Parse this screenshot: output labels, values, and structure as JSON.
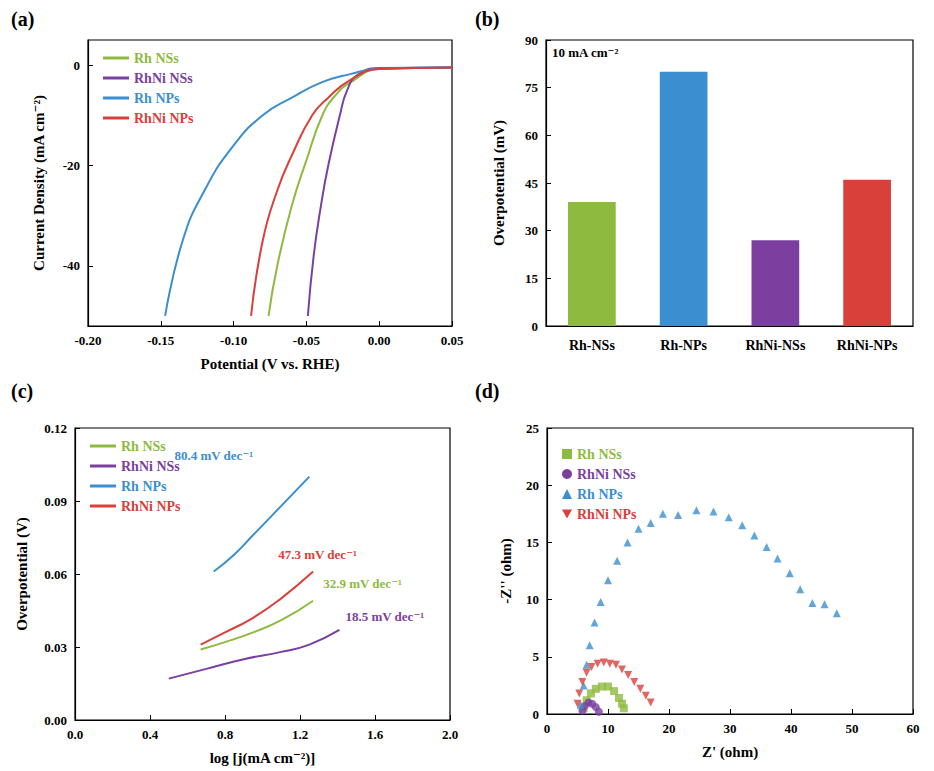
{
  "chart_data": [
    {
      "type": "line",
      "title": "(a)",
      "x_label": "Potential (V vs. RHE)",
      "y_label": "Current Density (mA cm⁻²)",
      "xlim": [
        -0.2,
        0.05
      ],
      "xticks": [
        {
          "value": -0.2,
          "label": "-0.20"
        },
        -0.15,
        {
          "value": -0.1,
          "label": "-0.10"
        },
        -0.05,
        {
          "value": 0,
          "label": "0.00"
        },
        0.05
      ],
      "ylim": [
        -52,
        5
      ],
      "yticks": [
        -40,
        -20,
        0
      ],
      "grid": false,
      "legend": "upper left",
      "series": [
        {
          "name": "Rh NSs",
          "color": "#8dba3f",
          "values": [
            [
              0.05,
              -0.5
            ],
            [
              0.0,
              -0.8
            ],
            [
              -0.02,
              -3.5
            ],
            [
              -0.03,
              -6
            ],
            [
              -0.039,
              -10
            ],
            [
              -0.05,
              -19
            ],
            [
              -0.06,
              -28
            ],
            [
              -0.07,
              -40
            ],
            [
              -0.076,
              -50
            ]
          ]
        },
        {
          "name": "RhNi NSs",
          "color": "#7b3fa0",
          "values": [
            [
              0.05,
              -0.5
            ],
            [
              0.0,
              -0.6
            ],
            [
              -0.015,
              -2
            ],
            [
              -0.022,
              -5
            ],
            [
              -0.027,
              -10
            ],
            [
              -0.035,
              -20
            ],
            [
              -0.04,
              -28
            ],
            [
              -0.045,
              -38
            ],
            [
              -0.049,
              -50
            ]
          ]
        },
        {
          "name": "Rh NPs",
          "color": "#3b8fd0",
          "values": [
            [
              0.05,
              -0.5
            ],
            [
              0.0,
              -0.7
            ],
            [
              -0.02,
              -1.8
            ],
            [
              -0.04,
              -3.5
            ],
            [
              -0.06,
              -6.5
            ],
            [
              -0.08,
              -10
            ],
            [
              -0.1,
              -16
            ],
            [
              -0.12,
              -25
            ],
            [
              -0.135,
              -35
            ],
            [
              -0.147,
              -50
            ]
          ]
        },
        {
          "name": "RhNi NPs",
          "color": "#d9403a",
          "values": [
            [
              0.05,
              -0.5
            ],
            [
              0.0,
              -0.8
            ],
            [
              -0.02,
              -3
            ],
            [
              -0.035,
              -6.5
            ],
            [
              -0.046,
              -10
            ],
            [
              -0.06,
              -18
            ],
            [
              -0.07,
              -25
            ],
            [
              -0.08,
              -35
            ],
            [
              -0.088,
              -50
            ]
          ]
        }
      ]
    },
    {
      "type": "bar",
      "title": "(b)",
      "annotation": "10 mA cm⁻²",
      "y_label": "Overpotential (mV)",
      "categories": [
        "Rh-NSs",
        "Rh-NPs",
        "RhNi-NSs",
        "RhNi-NPs"
      ],
      "values": [
        39,
        80,
        27,
        46
      ],
      "colors": [
        "#8dba3f",
        "#3b8fd0",
        "#7b3fa0",
        "#d9403a"
      ],
      "ylim": [
        0,
        90
      ],
      "yticks": [
        0,
        15,
        30,
        45,
        60,
        75,
        90
      ],
      "grid": false
    },
    {
      "type": "line",
      "title": "(c)",
      "x_label": "log [j(mA cm⁻²)]",
      "y_label": "Overpotential (V)",
      "xlim": [
        0,
        2
      ],
      "xticks": [
        {
          "value": 0,
          "label": "0.0"
        },
        0.4,
        0.8,
        1.2,
        1.6,
        {
          "value": 2,
          "label": "2.0"
        }
      ],
      "ylim": [
        0,
        0.12
      ],
      "yticks": [
        {
          "value": 0,
          "label": "0.00"
        },
        0.03,
        0.06,
        0.09,
        0.12
      ],
      "grid": false,
      "legend": "upper left",
      "series": [
        {
          "name": "Rh NSs",
          "color": "#8dba3f",
          "annotation": "32.9 mV dec⁻¹",
          "values": [
            [
              0.67,
              0.029
            ],
            [
              0.8,
              0.032
            ],
            [
              0.95,
              0.036
            ],
            [
              1.1,
              0.041
            ],
            [
              1.27,
              0.049
            ]
          ]
        },
        {
          "name": "RhNi NSs",
          "color": "#7b3fa0",
          "annotation": "18.5 mV dec⁻¹",
          "values": [
            [
              0.5,
              0.017
            ],
            [
              0.7,
              0.021
            ],
            [
              0.9,
              0.025
            ],
            [
              1.1,
              0.028
            ],
            [
              1.25,
              0.031
            ],
            [
              1.41,
              0.037
            ]
          ]
        },
        {
          "name": "Rh NPs",
          "color": "#3b8fd0",
          "annotation": "80.4 mV dec⁻¹",
          "values": [
            [
              0.74,
              0.061
            ],
            [
              0.85,
              0.068
            ],
            [
              0.95,
              0.076
            ],
            [
              1.05,
              0.084
            ],
            [
              1.15,
              0.092
            ],
            [
              1.25,
              0.1
            ]
          ]
        },
        {
          "name": "RhNi NPs",
          "color": "#d9403a",
          "annotation": "47.3 mV dec⁻¹",
          "values": [
            [
              0.67,
              0.031
            ],
            [
              0.8,
              0.036
            ],
            [
              0.95,
              0.042
            ],
            [
              1.1,
              0.05
            ],
            [
              1.27,
              0.061
            ]
          ]
        }
      ]
    },
    {
      "type": "scatter",
      "title": "(d)",
      "x_label": "Z' (ohm)",
      "y_label": "-Z'' (ohm)",
      "xlim": [
        0,
        60
      ],
      "xticks": [
        0,
        10,
        20,
        30,
        40,
        50,
        60
      ],
      "ylim": [
        0,
        25
      ],
      "yticks": [
        0,
        5,
        10,
        15,
        20,
        25
      ],
      "grid": false,
      "legend": "upper left",
      "series": [
        {
          "name": "Rh NSs",
          "color": "#8dba3f",
          "marker": "square",
          "values": [
            [
              6,
              0.5
            ],
            [
              6.5,
              1.2
            ],
            [
              7.2,
              1.8
            ],
            [
              8,
              2.2
            ],
            [
              9,
              2.4
            ],
            [
              10,
              2.4
            ],
            [
              11,
              2.0
            ],
            [
              11.8,
              1.4
            ],
            [
              12.3,
              0.9
            ],
            [
              12.6,
              0.5
            ]
          ]
        },
        {
          "name": "RhNi NSs",
          "color": "#7b3fa0",
          "marker": "circle",
          "values": [
            [
              5.8,
              0.3
            ],
            [
              6.2,
              0.7
            ],
            [
              6.8,
              1.0
            ],
            [
              7.4,
              0.9
            ],
            [
              8,
              0.6
            ],
            [
              8.5,
              0.2
            ]
          ]
        },
        {
          "name": "Rh NPs",
          "color": "#3b8fd0",
          "marker": "triangle",
          "values": [
            [
              5.5,
              0.8
            ],
            [
              6,
              2.5
            ],
            [
              6.5,
              4.3
            ],
            [
              7,
              6
            ],
            [
              7.8,
              8
            ],
            [
              8.8,
              9.8
            ],
            [
              10,
              11.7
            ],
            [
              11.5,
              13.4
            ],
            [
              13.2,
              15
            ],
            [
              15,
              16.2
            ],
            [
              17,
              16.7
            ],
            [
              19,
              17.5
            ],
            [
              21.5,
              17.4
            ],
            [
              24.5,
              17.8
            ],
            [
              27.3,
              17.7
            ],
            [
              29.8,
              17.2
            ],
            [
              32,
              16.5
            ],
            [
              34,
              15.6
            ],
            [
              36,
              14.6
            ],
            [
              37.8,
              13.6
            ],
            [
              39.8,
              12.3
            ],
            [
              41.5,
              10.9
            ],
            [
              43.5,
              9.7
            ],
            [
              45.5,
              9.6
            ],
            [
              47.5,
              8.8
            ]
          ]
        },
        {
          "name": "RhNi NPs",
          "color": "#d9403a",
          "marker": "triangle-down",
          "values": [
            [
              5,
              0.9
            ],
            [
              5.3,
              1.8
            ],
            [
              5.8,
              2.8
            ],
            [
              6.5,
              3.6
            ],
            [
              7.3,
              4.1
            ],
            [
              8.3,
              4.4
            ],
            [
              9.3,
              4.5
            ],
            [
              10.3,
              4.4
            ],
            [
              11.3,
              4.3
            ],
            [
              12.3,
              3.9
            ],
            [
              13.3,
              3.4
            ],
            [
              14.3,
              2.8
            ],
            [
              15.3,
              2.2
            ],
            [
              16.2,
              1.6
            ],
            [
              17,
              1.0
            ]
          ]
        }
      ]
    }
  ]
}
